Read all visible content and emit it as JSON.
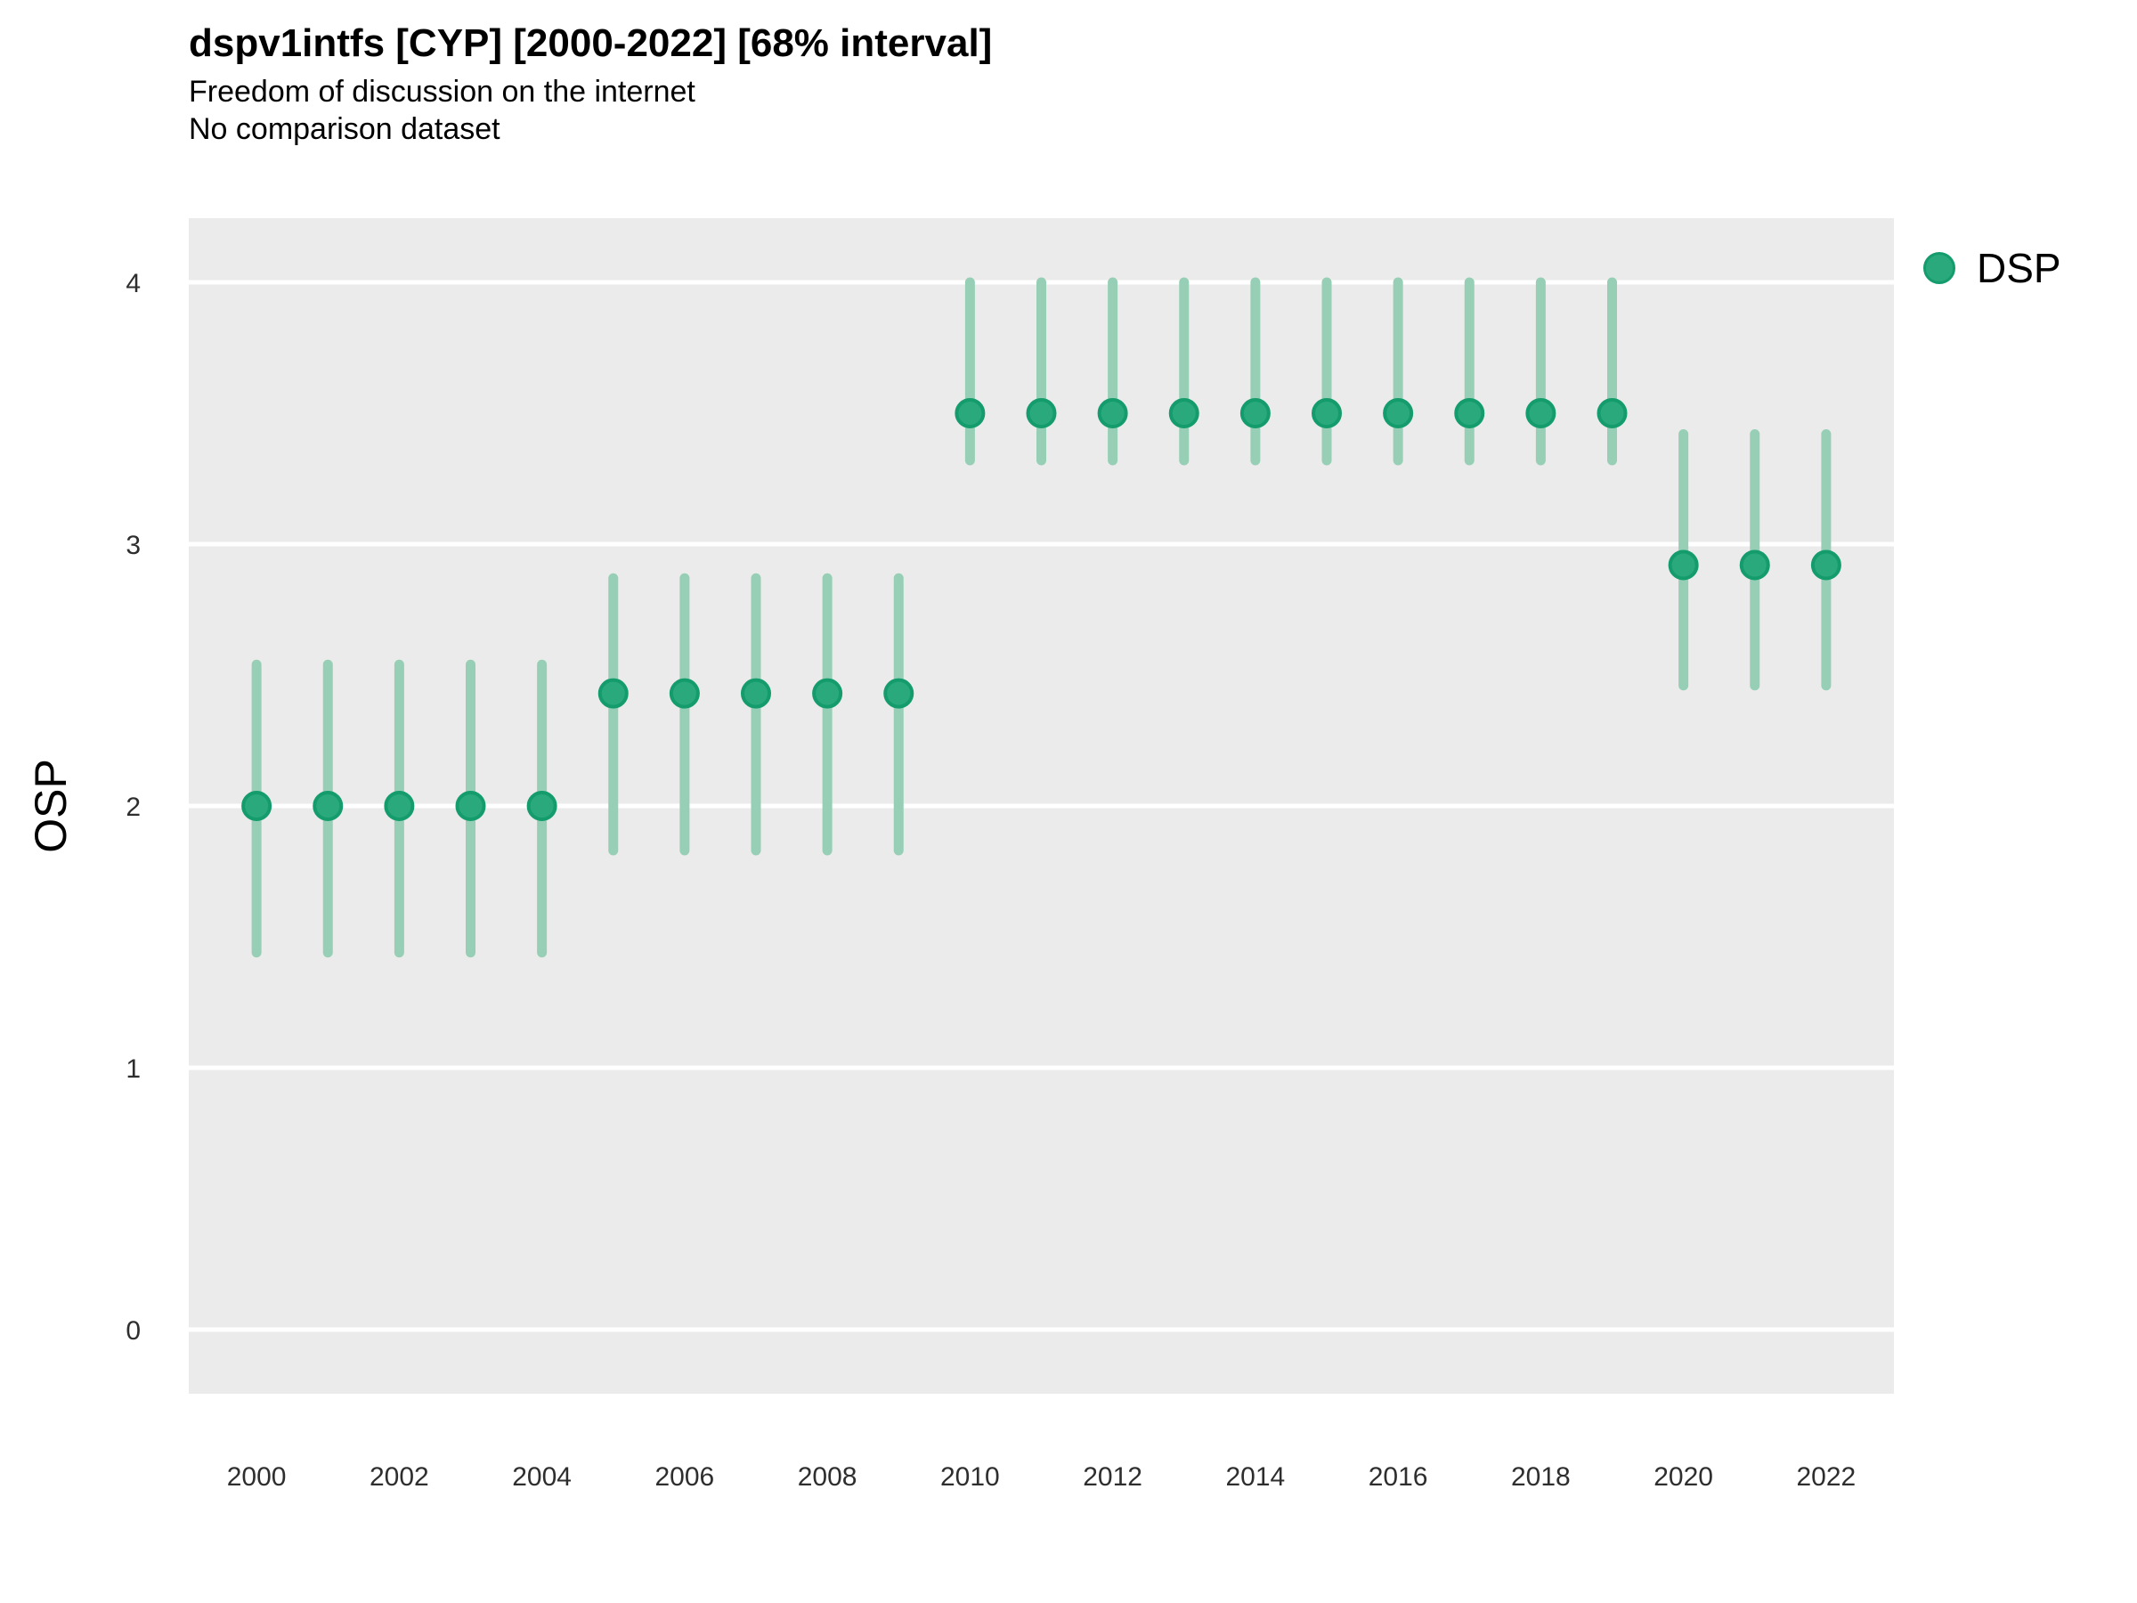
{
  "header": {
    "title": "dspv1intfs [CYP] [2000-2022] [68% interval]",
    "subtitle": "Freedom of discussion on the internet",
    "dataset_note": "No comparison dataset"
  },
  "legend": {
    "label": "DSP",
    "position": "right"
  },
  "y_axis": {
    "title": "OSP",
    "ticks": [
      0,
      1,
      2,
      3,
      4
    ]
  },
  "x_axis": {
    "ticks": [
      2000,
      2002,
      2004,
      2006,
      2008,
      2010,
      2012,
      2014,
      2016,
      2018,
      2020,
      2022
    ]
  },
  "colors": {
    "panel_bg": "#ebebeb",
    "grid": "#ffffff",
    "interval_line": "#96cfb6",
    "point_fill": "#2aa97d",
    "point_border": "#149c6d",
    "title_text": "#000000",
    "tick_text": "#2e2e2e"
  },
  "chart_data": {
    "type": "scatter",
    "title": "dspv1intfs [CYP] [2000-2022] [68% interval]",
    "subtitle": "Freedom of discussion on the internet",
    "note": "No comparison dataset",
    "country": "CYP",
    "interval": "68%",
    "xlabel": "",
    "ylabel": "OSP",
    "ylim": [
      -0.245,
      4.245
    ],
    "xlim": [
      1999.05,
      2022.95
    ],
    "grid": "horizontal",
    "legend_position": "right",
    "x": [
      2000,
      2001,
      2002,
      2003,
      2004,
      2005,
      2006,
      2007,
      2008,
      2009,
      2010,
      2011,
      2012,
      2013,
      2014,
      2015,
      2016,
      2017,
      2018,
      2019,
      2020,
      2021,
      2022
    ],
    "series": [
      {
        "name": "DSP",
        "estimates": [
          2.0,
          2.0,
          2.0,
          2.0,
          2.0,
          2.43,
          2.43,
          2.43,
          2.43,
          2.43,
          3.5,
          3.5,
          3.5,
          3.5,
          3.5,
          3.5,
          3.5,
          3.5,
          3.5,
          3.5,
          2.92,
          2.92,
          2.92
        ],
        "lower": [
          1.44,
          1.44,
          1.44,
          1.44,
          1.44,
          1.83,
          1.83,
          1.83,
          1.83,
          1.83,
          3.32,
          3.32,
          3.32,
          3.32,
          3.32,
          3.32,
          3.32,
          3.32,
          3.32,
          3.32,
          2.46,
          2.46,
          2.46
        ],
        "upper": [
          2.54,
          2.54,
          2.54,
          2.54,
          2.54,
          2.87,
          2.87,
          2.87,
          2.87,
          2.87,
          4.0,
          4.0,
          4.0,
          4.0,
          4.0,
          4.0,
          4.0,
          4.0,
          4.0,
          4.0,
          3.42,
          3.42,
          3.42
        ]
      }
    ]
  }
}
